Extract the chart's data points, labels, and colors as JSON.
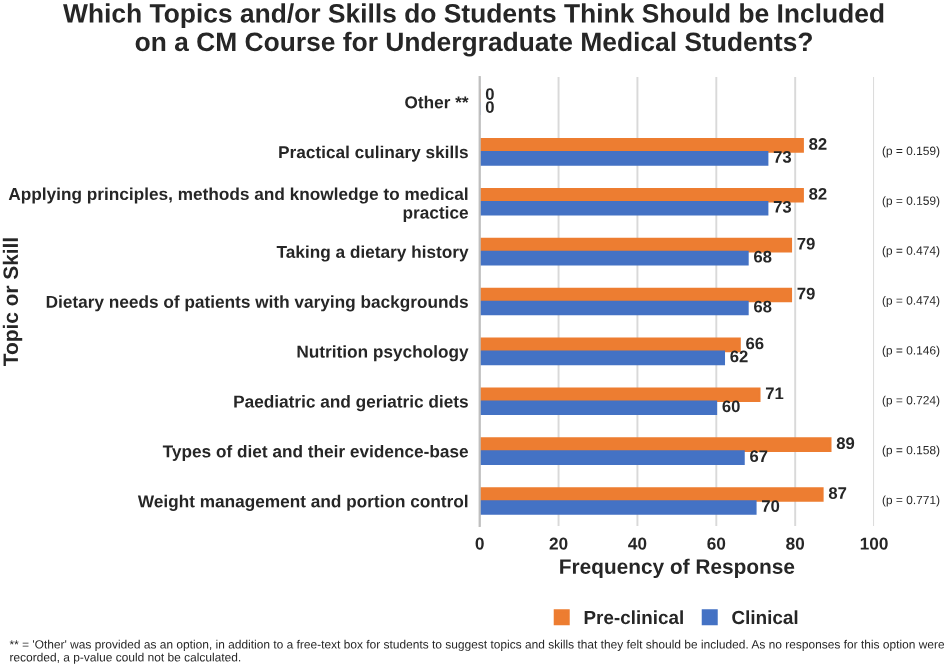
{
  "chart_data": {
    "type": "bar",
    "orientation": "horizontal",
    "title": "Which Topics and/or Skills do Students Think Should be Included\non a CM Course for Undergraduate Medical Students?",
    "xlabel": "Frequency of Response",
    "ylabel": "Topic or Skill",
    "categories": [
      "Other **",
      "Practical culinary skills",
      "Applying principles, methods and knowledge to medical\npractice",
      "Taking a dietary history",
      "Dietary needs of patients with varying backgrounds",
      "Nutrition psychology",
      "Paediatric and geriatric diets",
      "Types of diet and their evidence-base",
      "Weight management and portion control"
    ],
    "series": [
      {
        "name": "Pre-clinical",
        "color": "#ed7d31",
        "values": [
          0,
          82,
          82,
          79,
          79,
          66,
          71,
          89,
          87
        ]
      },
      {
        "name": "Clinical",
        "color": "#4472c4",
        "values": [
          0,
          73,
          73,
          68,
          68,
          62,
          60,
          67,
          70
        ]
      }
    ],
    "xlim": [
      0,
      100
    ],
    "xticks": [
      0,
      20,
      40,
      60,
      80,
      100
    ],
    "grid": "x",
    "legend": "bottom",
    "data_labels": true,
    "annotations": [
      "(p = 0.159)",
      "(p = 0.159)",
      "(p = 0.474)",
      "(p = 0.474)",
      "(p = 0.146)",
      "(p = 0.724)",
      "(p = 0.158)",
      "(p = 0.771)",
      "** = 'Other' was provided as an option, in addition to a free-text box for students to suggest topics and skills that they felt should be included. As no responses for this option were recorded, a p-value could not be calculated."
    ]
  }
}
